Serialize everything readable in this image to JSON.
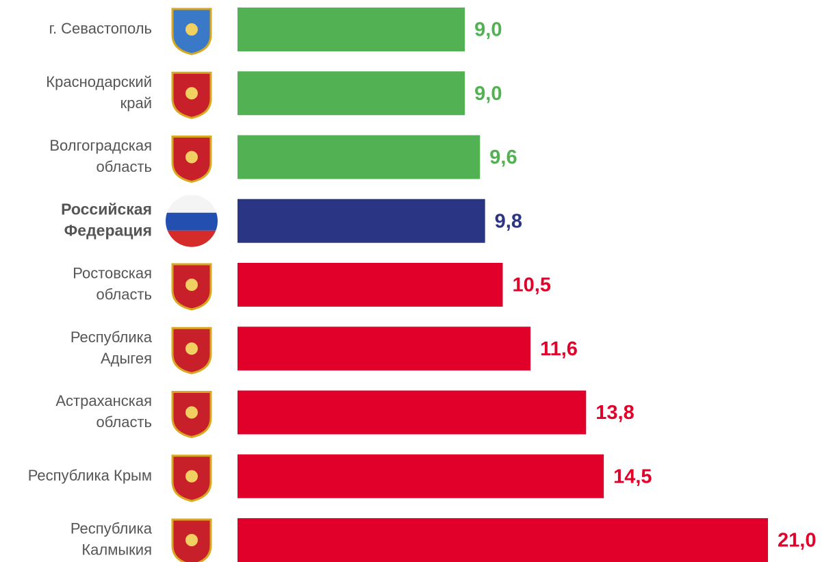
{
  "chart_data": {
    "type": "bar",
    "orientation": "horizontal",
    "categories": [
      "г. Севастополь",
      "Краснодарский\nкрай",
      "Волгоградская\nобласть",
      "Российская\nФедерация",
      "Ростовская\nобласть",
      "Республика\nАдыгея",
      "Астраханская\nобласть",
      "Республика Крым",
      "Республика\nКалмыкия"
    ],
    "values": [
      9.0,
      9.0,
      9.6,
      9.8,
      10.5,
      11.6,
      13.8,
      14.5,
      21.0
    ],
    "value_labels": [
      "9,0",
      "9,0",
      "9,6",
      "9,8",
      "10,5",
      "11,6",
      "13,8",
      "14,5",
      "21,0"
    ],
    "colors": [
      "#52b152",
      "#52b152",
      "#52b152",
      "#2a3683",
      "#e0002a",
      "#e0002a",
      "#e0002a",
      "#e0002a",
      "#e0002a"
    ],
    "highlight": 3,
    "xlim": [
      0,
      21
    ]
  }
}
